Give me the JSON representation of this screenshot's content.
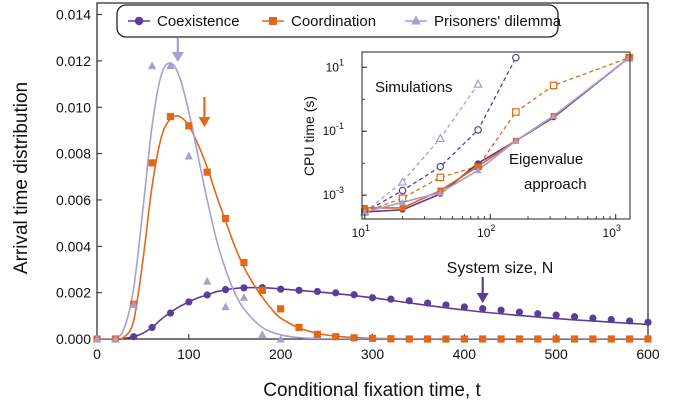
{
  "chart_data": [
    {
      "type": "line",
      "xlabel": "Conditional fixation time, t",
      "ylabel": "Arrival time distribution",
      "xlim": [
        0,
        600
      ],
      "ylim": [
        0,
        0.0145
      ],
      "xticks": [
        "0",
        "100",
        "200",
        "300",
        "400",
        "500",
        "600"
      ],
      "yticks": [
        "0.000",
        "0.002",
        "0.004",
        "0.006",
        "0.008",
        "0.010",
        "0.012",
        "0.014"
      ],
      "legend_position": "top",
      "series": [
        {
          "name": "Coexistence",
          "color": "#5a3d99",
          "marker": "circle",
          "curve": {
            "x": [
              0,
              20,
              30,
              40,
              50,
              60,
              70,
              80,
              90,
              100,
              110,
              120,
              130,
              140,
              150,
              160,
              170,
              180,
              200,
              250,
              300,
              350,
              400,
              450,
              500,
              550,
              600
            ],
            "y": [
              0,
              0,
              3e-05,
              0.0001,
              0.00025,
              0.0005,
              0.00085,
              0.00115,
              0.0014,
              0.0016,
              0.00178,
              0.0019,
              0.00204,
              0.00212,
              0.00218,
              0.00221,
              0.00222,
              0.00221,
              0.00216,
              0.002,
              0.00178,
              0.0015,
              0.00125,
              0.00105,
              0.00088,
              0.00075,
              0.00063
            ]
          },
          "points": {
            "x": [
              0,
              20,
              40,
              60,
              80,
              100,
              120,
              140,
              160,
              180,
              200,
              220,
              240,
              260,
              280,
              300,
              320,
              340,
              360,
              380,
              400,
              420,
              440,
              460,
              480,
              500,
              520,
              540,
              560,
              580,
              600
            ],
            "y": [
              0,
              0,
              0.0001,
              0.0005,
              0.00112,
              0.0016,
              0.0019,
              0.00213,
              0.00221,
              0.00222,
              0.00215,
              0.0021,
              0.00205,
              0.00199,
              0.00191,
              0.00178,
              0.00172,
              0.00165,
              0.00155,
              0.00147,
              0.00138,
              0.00131,
              0.00124,
              0.00116,
              0.00109,
              0.00103,
              0.00096,
              0.0009,
              0.00084,
              0.00078,
              0.00072
            ]
          }
        },
        {
          "name": "Coordination",
          "color": "#e06818",
          "marker": "square",
          "curve": {
            "x": [
              0,
              20,
              30,
              40,
              50,
              60,
              70,
              80,
              90,
              100,
              110,
              120,
              130,
              140,
              150,
              160,
              170,
              180,
              190,
              200,
              220,
              240,
              260,
              280,
              300,
              350,
              400,
              500,
              600
            ],
            "y": [
              0,
              0,
              0.0001,
              0.0008,
              0.0034,
              0.0066,
              0.0087,
              0.0095,
              0.0096,
              0.0092,
              0.0084,
              0.0074,
              0.0062,
              0.0051,
              0.004,
              0.0031,
              0.0024,
              0.0018,
              0.0013,
              0.0009,
              0.00048,
              0.00024,
              0.00012,
              6e-05,
              3e-05,
              1e-05,
              0,
              0,
              0
            ]
          },
          "points": {
            "x": [
              0,
              20,
              40,
              60,
              80,
              100,
              120,
              140,
              160,
              180,
              200,
              220,
              240,
              260,
              280,
              300,
              320,
              340,
              360,
              380,
              400,
              420,
              440,
              460,
              480,
              500,
              520,
              540,
              560,
              580,
              600
            ],
            "y": [
              0,
              0,
              0.0015,
              0.0076,
              0.0096,
              0.0092,
              0.0072,
              0.0052,
              0.0033,
              0.0021,
              0.0013,
              0.0005,
              0.0002,
              0.0001,
              5e-05,
              3e-05,
              1e-05,
              0,
              0,
              0,
              0,
              0,
              0,
              0,
              0,
              0,
              0,
              0,
              0,
              0,
              0
            ]
          }
        },
        {
          "name": "Prisoners' dilemma",
          "color": "#a79fd0",
          "marker": "triangle",
          "curve": {
            "x": [
              0,
              20,
              30,
              40,
              50,
              60,
              70,
              80,
              90,
              100,
              110,
              120,
              130,
              140,
              150,
              160,
              180,
              200,
              220,
              240,
              260,
              280,
              300,
              600
            ],
            "y": [
              0,
              5e-05,
              0.0005,
              0.0022,
              0.0056,
              0.0092,
              0.0114,
              0.0119,
              0.0113,
              0.0098,
              0.0079,
              0.006,
              0.0043,
              0.003,
              0.002,
              0.0013,
              0.0005,
              0.00018,
              6e-05,
              2e-05,
              0,
              0,
              0,
              0
            ]
          },
          "points": {
            "x": [
              0,
              20,
              40,
              60,
              80,
              100,
              120,
              140,
              160,
              180,
              200
            ],
            "y": [
              0,
              0,
              0.0015,
              0.0118,
              0.0118,
              0.0079,
              0.0025,
              0.0014,
              0.0018,
              0.0002,
              0
            ]
          }
        }
      ],
      "annotations": [
        {
          "text": "System size, N",
          "arrow_color": "#5a3d99",
          "arrow_x": 420
        },
        {
          "arrow_color": "#a79fd0",
          "arrow_x": 88
        },
        {
          "arrow_color": "#e06818",
          "arrow_x": 117
        }
      ]
    },
    {
      "type": "line",
      "xlabel": "System size, N",
      "ylabel": "CPU time (s)",
      "xscale": "log",
      "yscale": "log",
      "xlim": [
        9.5,
        1300
      ],
      "ylim": [
        0.00018,
        30
      ],
      "xticks": [
        {
          "value": 10,
          "base": "10",
          "exp": "1"
        },
        {
          "value": 100,
          "base": "10",
          "exp": "2"
        },
        {
          "value": 1000,
          "base": "10",
          "exp": "3"
        }
      ],
      "yticks": [
        {
          "value": 0.001,
          "base": "10",
          "exp": "-3"
        },
        {
          "value": 0.1,
          "base": "10",
          "exp": "-1"
        },
        {
          "value": 10,
          "base": "10",
          "exp": "1"
        }
      ],
      "annotations": [
        "Simulations",
        "Eigenvalue",
        "approach"
      ],
      "series": [
        {
          "group": "Simulations",
          "color": "#5a3d99",
          "marker": "circle",
          "dashed": true,
          "x": [
            10,
            20,
            40,
            80,
            160
          ],
          "y": [
            0.0003,
            0.0014,
            0.0078,
            0.11,
            20
          ]
        },
        {
          "group": "Simulations",
          "color": "#e06818",
          "marker": "square",
          "dashed": true,
          "x": [
            10,
            20,
            40,
            80,
            160,
            320,
            1280
          ],
          "y": [
            0.0003,
            0.0008,
            0.0036,
            0.008,
            0.4,
            2.7,
            20
          ]
        },
        {
          "group": "Simulations",
          "color": "#a79fd0",
          "marker": "triangle",
          "dashed": true,
          "x": [
            10,
            20,
            40,
            80
          ],
          "y": [
            0.0003,
            0.0026,
            0.06,
            3
          ]
        },
        {
          "group": "Eigenvalue approach",
          "color": "#5a3d99",
          "marker": "circle",
          "dashed": false,
          "x": [
            10,
            20,
            40,
            80,
            160,
            320,
            1280
          ],
          "y": [
            0.0003,
            0.00035,
            0.0011,
            0.01,
            0.05,
            0.27,
            20
          ]
        },
        {
          "group": "Eigenvalue approach",
          "color": "#e06818",
          "marker": "square",
          "dashed": false,
          "x": [
            10,
            20,
            40,
            80,
            160,
            320,
            1280
          ],
          "y": [
            0.0004,
            0.0004,
            0.0014,
            0.008,
            0.05,
            0.3,
            20
          ]
        },
        {
          "group": "Eigenvalue approach",
          "color": "#a79fd0",
          "marker": "triangle",
          "dashed": false,
          "x": [
            10,
            20,
            40,
            80,
            160,
            320,
            1280
          ],
          "y": [
            0.0003,
            0.0006,
            0.0012,
            0.006,
            0.05,
            0.3,
            20
          ]
        }
      ]
    }
  ]
}
